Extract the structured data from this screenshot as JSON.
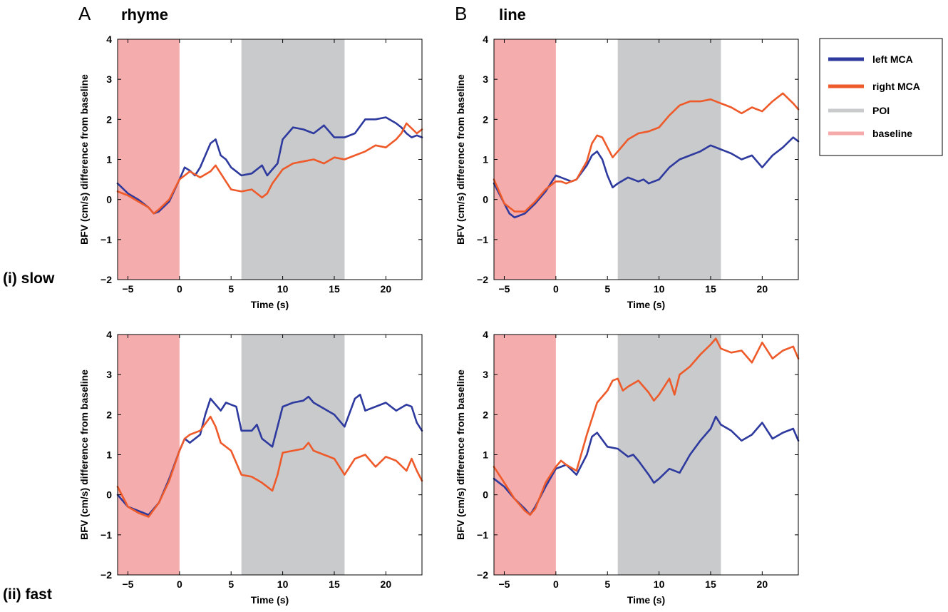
{
  "panel_letters": {
    "a": "A",
    "b": "B"
  },
  "column_titles": {
    "a": "rhyme",
    "b": "line"
  },
  "row_labels": {
    "slow": "(i) slow",
    "fast": "(ii) fast"
  },
  "axes": {
    "xlabel": "Time (s)",
    "ylabel": "BFV (cm/s) difference from baseline",
    "xlim": [
      -6,
      23.5
    ],
    "ylim": [
      -2,
      4
    ],
    "xticks": [
      -5,
      0,
      5,
      10,
      15,
      20
    ],
    "yticks": [
      -2,
      -1,
      0,
      1,
      2,
      3,
      4
    ]
  },
  "legend": {
    "placement": "right of top-right panel",
    "items": [
      {
        "label": "left MCA",
        "color": "#2E3A9E"
      },
      {
        "label": "right MCA",
        "color": "#EE5A2A"
      },
      {
        "label": "POI",
        "color": "#C8CACC"
      },
      {
        "label": "baseline",
        "color": "#F5A9A9"
      }
    ]
  },
  "colors": {
    "left": "#2E3A9E",
    "right": "#EE5A2A",
    "poi": "#C8CACC",
    "baseline": "#F5ACAC"
  },
  "chart_data": [
    {
      "type": "line",
      "panel": "A (i)",
      "title": "rhyme",
      "row": "(i) slow",
      "xlabel": "Time (s)",
      "ylabel": "BFV (cm/s) difference from baseline",
      "xlim": [
        -6,
        23.5
      ],
      "ylim": [
        -2,
        4
      ],
      "shaded_regions": [
        {
          "name": "baseline",
          "x": [
            -6,
            0
          ]
        },
        {
          "name": "POI",
          "x": [
            6,
            16
          ]
        }
      ],
      "series": [
        {
          "name": "left MCA",
          "x": [
            -6,
            -5,
            -4,
            -3,
            -2.5,
            -2,
            -1,
            0,
            0.5,
            1,
            1.5,
            2,
            3,
            3.5,
            4,
            4.5,
            5,
            5.5,
            6,
            7,
            8,
            8.5,
            9,
            9.5,
            10,
            11,
            12,
            13,
            14,
            15,
            16,
            17,
            18,
            19,
            20,
            21,
            21.5,
            22,
            22.5,
            23,
            23.5
          ],
          "values": [
            0.4,
            0.15,
            0.0,
            -0.2,
            -0.35,
            -0.3,
            -0.05,
            0.5,
            0.8,
            0.72,
            0.6,
            0.8,
            1.4,
            1.5,
            1.1,
            1.0,
            0.8,
            0.7,
            0.6,
            0.65,
            0.85,
            0.6,
            0.75,
            0.9,
            1.5,
            1.8,
            1.75,
            1.65,
            1.85,
            1.55,
            1.55,
            1.65,
            2.0,
            2.0,
            2.05,
            1.9,
            1.8,
            1.65,
            1.55,
            1.6,
            1.55
          ]
        },
        {
          "name": "right MCA",
          "x": [
            -6,
            -5,
            -4,
            -3,
            -2.5,
            -2,
            -1,
            0,
            0.5,
            1,
            2,
            3,
            3.5,
            4,
            5,
            6,
            7,
            8,
            8.5,
            9,
            10,
            11,
            12,
            13,
            14,
            15,
            16,
            17,
            18,
            19,
            20,
            21,
            21.5,
            22,
            23,
            23.5
          ],
          "values": [
            0.2,
            0.1,
            -0.05,
            -0.2,
            -0.35,
            -0.25,
            0.0,
            0.5,
            0.6,
            0.7,
            0.55,
            0.7,
            0.85,
            0.65,
            0.25,
            0.2,
            0.25,
            0.05,
            0.15,
            0.4,
            0.75,
            0.9,
            0.95,
            1.0,
            0.9,
            1.05,
            1.0,
            1.1,
            1.2,
            1.35,
            1.3,
            1.5,
            1.65,
            1.9,
            1.65,
            1.75
          ]
        }
      ]
    },
    {
      "type": "line",
      "panel": "B (i)",
      "title": "line",
      "row": "(i) slow",
      "xlabel": "Time (s)",
      "ylabel": "BFV (cm/s) difference from baseline",
      "xlim": [
        -6,
        23.5
      ],
      "ylim": [
        -2,
        4
      ],
      "shaded_regions": [
        {
          "name": "baseline",
          "x": [
            -6,
            0
          ]
        },
        {
          "name": "POI",
          "x": [
            6,
            16
          ]
        }
      ],
      "series": [
        {
          "name": "left MCA",
          "x": [
            -6,
            -5,
            -4.5,
            -4,
            -3,
            -2,
            -1,
            0,
            0.5,
            1,
            1.5,
            2,
            3,
            3.5,
            4,
            4.5,
            5,
            5.5,
            6,
            7,
            8,
            8.5,
            9,
            10,
            11,
            12,
            13,
            14,
            15,
            16,
            17,
            18,
            19,
            20,
            21,
            22,
            23,
            23.5
          ],
          "values": [
            0.4,
            -0.1,
            -0.35,
            -0.45,
            -0.35,
            -0.1,
            0.2,
            0.6,
            0.55,
            0.5,
            0.45,
            0.5,
            0.85,
            1.1,
            1.2,
            1.0,
            0.6,
            0.3,
            0.4,
            0.55,
            0.45,
            0.5,
            0.4,
            0.5,
            0.8,
            1.0,
            1.1,
            1.2,
            1.35,
            1.25,
            1.15,
            1.0,
            1.1,
            0.8,
            1.1,
            1.3,
            1.55,
            1.45
          ]
        },
        {
          "name": "right MCA",
          "x": [
            -6,
            -5,
            -4,
            -3,
            -2,
            -1,
            0,
            0.5,
            1,
            2,
            3,
            3.5,
            4,
            4.5,
            5,
            5.5,
            6,
            7,
            8,
            9,
            10,
            11,
            12,
            13,
            14,
            15,
            16,
            17,
            18,
            19,
            20,
            21,
            22,
            23,
            23.5
          ],
          "values": [
            0.5,
            -0.1,
            -0.3,
            -0.3,
            -0.05,
            0.25,
            0.45,
            0.45,
            0.4,
            0.5,
            0.95,
            1.4,
            1.6,
            1.55,
            1.3,
            1.05,
            1.2,
            1.5,
            1.65,
            1.7,
            1.8,
            2.1,
            2.35,
            2.45,
            2.45,
            2.5,
            2.4,
            2.3,
            2.15,
            2.3,
            2.2,
            2.45,
            2.65,
            2.4,
            2.25
          ]
        }
      ]
    },
    {
      "type": "line",
      "panel": "A (ii)",
      "title": "rhyme",
      "row": "(ii) fast",
      "xlabel": "Time (s)",
      "ylabel": "BFV (cm/s) difference from baseline",
      "xlim": [
        -6,
        23.5
      ],
      "ylim": [
        -2,
        4
      ],
      "shaded_regions": [
        {
          "name": "baseline",
          "x": [
            -6,
            0
          ]
        },
        {
          "name": "POI",
          "x": [
            6,
            16
          ]
        }
      ],
      "series": [
        {
          "name": "left MCA",
          "x": [
            -6,
            -5,
            -4,
            -3,
            -2,
            -1,
            0,
            0.5,
            1,
            2,
            2.5,
            3,
            4,
            4.5,
            5,
            5.5,
            6,
            7,
            7.5,
            8,
            9,
            9.5,
            10,
            11,
            12,
            12.5,
            13,
            14,
            15,
            16,
            17,
            17.5,
            18,
            19,
            20,
            21,
            22,
            22.5,
            23,
            23.5
          ],
          "values": [
            0.0,
            -0.3,
            -0.4,
            -0.5,
            -0.2,
            0.4,
            1.1,
            1.4,
            1.3,
            1.5,
            2.0,
            2.4,
            2.1,
            2.3,
            2.25,
            2.2,
            1.6,
            1.6,
            1.75,
            1.4,
            1.2,
            1.7,
            2.2,
            2.3,
            2.35,
            2.45,
            2.3,
            2.15,
            2.0,
            1.7,
            2.4,
            2.5,
            2.1,
            2.2,
            2.3,
            2.1,
            2.25,
            2.2,
            1.8,
            1.6
          ]
        },
        {
          "name": "right MCA",
          "x": [
            -6,
            -5,
            -4,
            -3,
            -2,
            -1,
            0,
            0.5,
            1,
            2,
            3,
            3.5,
            4,
            5,
            6,
            7,
            8,
            9,
            9.5,
            10,
            11,
            12,
            12.5,
            13,
            14,
            15,
            16,
            17,
            18,
            19,
            20,
            21,
            22,
            22.5,
            23,
            23.5
          ],
          "values": [
            0.2,
            -0.3,
            -0.45,
            -0.55,
            -0.2,
            0.35,
            1.1,
            1.4,
            1.5,
            1.6,
            1.95,
            1.7,
            1.3,
            1.1,
            0.5,
            0.45,
            0.3,
            0.1,
            0.5,
            1.05,
            1.1,
            1.15,
            1.3,
            1.1,
            1.0,
            0.9,
            0.5,
            0.9,
            1.0,
            0.7,
            0.95,
            0.85,
            0.6,
            0.9,
            0.6,
            0.35
          ]
        }
      ]
    },
    {
      "type": "line",
      "panel": "B (ii)",
      "title": "line",
      "row": "(ii) fast",
      "xlabel": "Time (s)",
      "ylabel": "BFV (cm/s) difference from baseline",
      "xlim": [
        -6,
        23.5
      ],
      "ylim": [
        -2,
        4
      ],
      "shaded_regions": [
        {
          "name": "baseline",
          "x": [
            -6,
            0
          ]
        },
        {
          "name": "POI",
          "x": [
            6,
            16
          ]
        }
      ],
      "series": [
        {
          "name": "left MCA",
          "x": [
            -6,
            -5,
            -4,
            -3,
            -2.5,
            -2,
            -1,
            0,
            0.5,
            1,
            2,
            3,
            3.5,
            4,
            5,
            6,
            7,
            7.5,
            8,
            9,
            9.5,
            10,
            11,
            12,
            13,
            14,
            15,
            15.5,
            16,
            17,
            18,
            19,
            20,
            21,
            22,
            23,
            23.5
          ],
          "values": [
            0.4,
            0.2,
            -0.1,
            -0.35,
            -0.5,
            -0.3,
            0.2,
            0.65,
            0.7,
            0.75,
            0.5,
            1.0,
            1.45,
            1.55,
            1.2,
            1.15,
            0.95,
            1.0,
            0.85,
            0.5,
            0.3,
            0.4,
            0.65,
            0.55,
            1.0,
            1.35,
            1.65,
            1.95,
            1.75,
            1.6,
            1.35,
            1.5,
            1.8,
            1.4,
            1.55,
            1.65,
            1.35
          ]
        },
        {
          "name": "right MCA",
          "x": [
            -6,
            -5,
            -4,
            -3,
            -2.5,
            -2,
            -1,
            0,
            0.5,
            1,
            2,
            3,
            4,
            5,
            5.5,
            6,
            6.5,
            7,
            8,
            9,
            9.5,
            10,
            11,
            11.5,
            12,
            13,
            14,
            15,
            15.5,
            16,
            17,
            18,
            19,
            20,
            21,
            22,
            23,
            23.5
          ],
          "values": [
            0.7,
            0.3,
            -0.1,
            -0.4,
            -0.5,
            -0.35,
            0.3,
            0.7,
            0.85,
            0.75,
            0.6,
            1.5,
            2.3,
            2.6,
            2.85,
            2.9,
            2.6,
            2.7,
            2.85,
            2.55,
            2.35,
            2.5,
            2.9,
            2.5,
            3.0,
            3.2,
            3.5,
            3.75,
            3.9,
            3.65,
            3.55,
            3.6,
            3.3,
            3.8,
            3.4,
            3.6,
            3.7,
            3.4
          ]
        }
      ]
    }
  ]
}
